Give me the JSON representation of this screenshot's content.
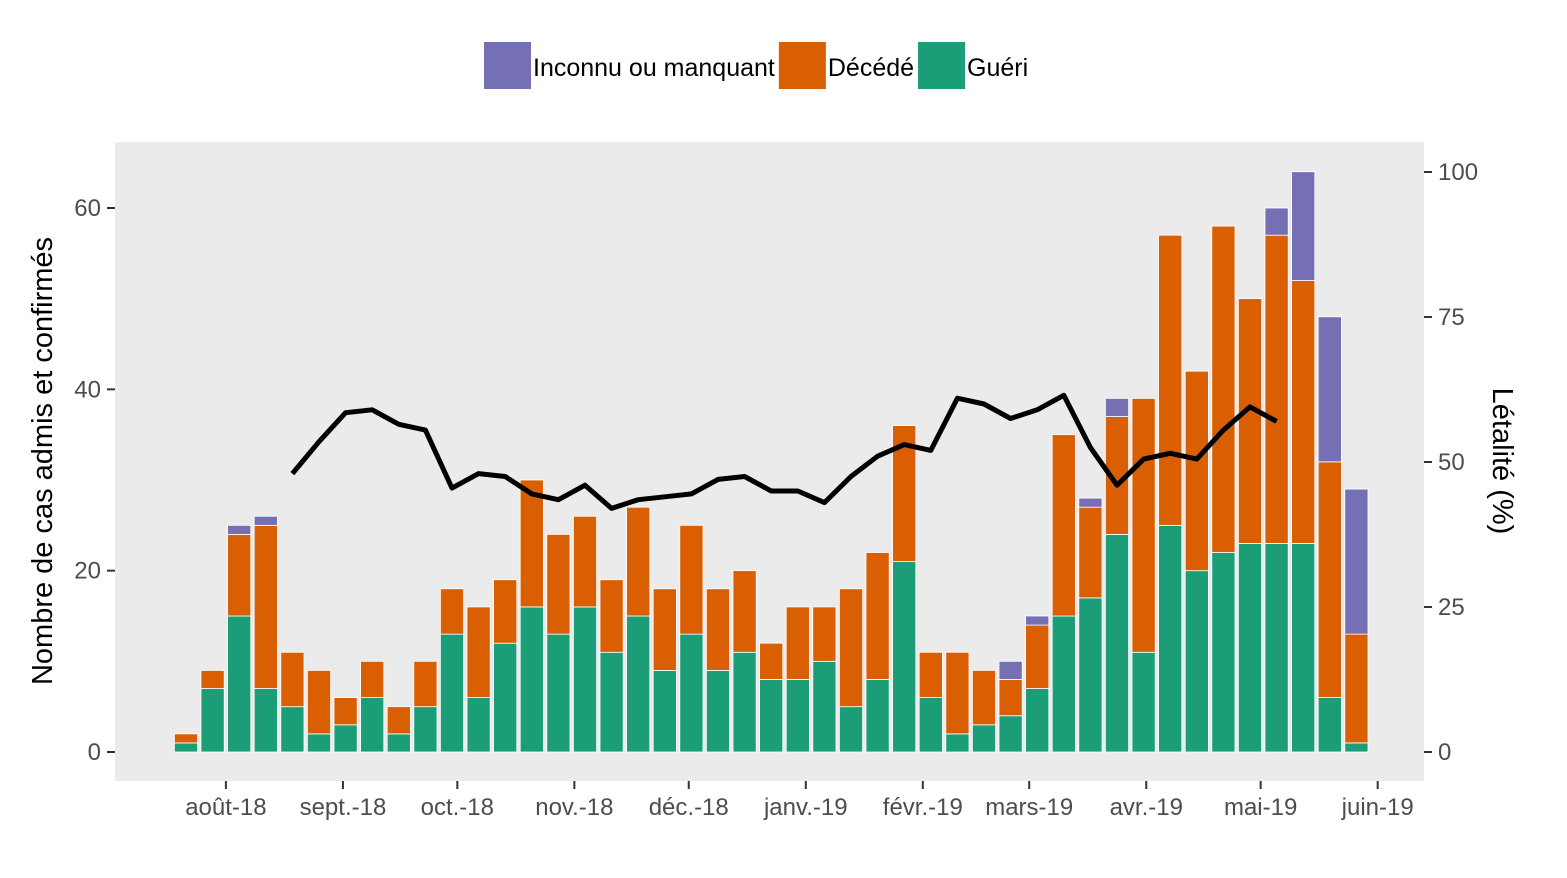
{
  "chart_data": {
    "type": "bar",
    "stacked": true,
    "ylabel": "Nombre de cas admis et confirmés",
    "y2label": "Létalité (%)",
    "ylim": [
      0,
      67
    ],
    "y2lim": [
      0,
      104.4
    ],
    "yticks": [
      0,
      20,
      40,
      60
    ],
    "y2ticks": [
      0,
      25,
      50,
      75,
      100
    ],
    "grid": false,
    "panel_background": "#ebebeb",
    "legend_position": "top",
    "xticks": [
      {
        "label": "août-18",
        "week": 1.5
      },
      {
        "label": "sept.-18",
        "week": 5.9
      },
      {
        "label": "oct.-18",
        "week": 10.2
      },
      {
        "label": "nov.-18",
        "week": 14.6
      },
      {
        "label": "déc.-18",
        "week": 18.9
      },
      {
        "label": "janv.-19",
        "week": 23.3
      },
      {
        "label": "févr.-19",
        "week": 27.7
      },
      {
        "label": "mars-19",
        "week": 31.7
      },
      {
        "label": "avr.-19",
        "week": 36.1
      },
      {
        "label": "mai-19",
        "week": 40.4
      },
      {
        "label": "juin-19",
        "week": 44.8
      }
    ],
    "series": [
      {
        "name": "Guéri",
        "color": "#1b9e77",
        "values": [
          1,
          7,
          15,
          7,
          5,
          2,
          3,
          6,
          2,
          5,
          13,
          6,
          12,
          16,
          13,
          16,
          11,
          15,
          9,
          13,
          9,
          11,
          8,
          8,
          10,
          5,
          8,
          21,
          6,
          2,
          3,
          4,
          7,
          15,
          17,
          24,
          11,
          25,
          20,
          22,
          23,
          23,
          23,
          6,
          1
        ]
      },
      {
        "name": "Décédé",
        "color": "#d95f02",
        "values": [
          1,
          2,
          9,
          18,
          6,
          7,
          3,
          4,
          3,
          5,
          5,
          10,
          7,
          14,
          11,
          10,
          8,
          12,
          9,
          12,
          9,
          9,
          4,
          8,
          6,
          13,
          14,
          15,
          5,
          9,
          6,
          4,
          7,
          20,
          10,
          13,
          28,
          32,
          22,
          36,
          27,
          34,
          29,
          26,
          12
        ]
      },
      {
        "name": "Inconnu ou manquant",
        "color": "#7570b3",
        "values": [
          0,
          0,
          1,
          1,
          0,
          0,
          0,
          0,
          0,
          0,
          0,
          0,
          0,
          0,
          0,
          0,
          0,
          0,
          0,
          0,
          0,
          0,
          0,
          0,
          0,
          0,
          0,
          0,
          0,
          0,
          0,
          2,
          1,
          0,
          1,
          2,
          0,
          0,
          0,
          0,
          0,
          3,
          12,
          16,
          16
        ]
      }
    ],
    "line": {
      "name": "Létalité (%)",
      "color": "#000000",
      "points": [
        [
          4,
          48
        ],
        [
          5,
          53.5
        ],
        [
          6,
          58.5
        ],
        [
          7,
          59
        ],
        [
          8,
          56.5
        ],
        [
          9,
          55.5
        ],
        [
          10,
          45.5
        ],
        [
          11,
          48
        ],
        [
          12,
          47.5
        ],
        [
          13,
          44.5
        ],
        [
          14,
          43.5
        ],
        [
          15,
          46
        ],
        [
          16,
          42
        ],
        [
          17,
          43.5
        ],
        [
          18,
          44
        ],
        [
          19,
          44.5
        ],
        [
          20,
          47
        ],
        [
          21,
          47.5
        ],
        [
          22,
          45
        ],
        [
          23,
          45
        ],
        [
          24,
          43
        ],
        [
          25,
          47.5
        ],
        [
          26,
          51
        ],
        [
          27,
          53
        ],
        [
          28,
          52
        ],
        [
          29,
          61
        ],
        [
          30,
          60
        ],
        [
          31,
          57.5
        ],
        [
          32,
          59
        ],
        [
          33,
          61.5
        ],
        [
          34,
          52.5
        ],
        [
          35,
          46
        ],
        [
          36,
          50.5
        ],
        [
          37,
          51.5
        ],
        [
          38,
          50.5
        ],
        [
          39,
          55.5
        ],
        [
          40,
          59.5
        ],
        [
          41,
          57
        ]
      ]
    }
  },
  "legend": {
    "order": [
      "Inconnu ou manquant",
      "Décédé",
      "Guéri"
    ]
  }
}
